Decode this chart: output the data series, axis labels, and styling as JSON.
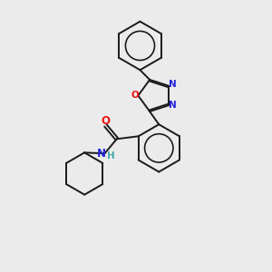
{
  "background_color": "#ebebeb",
  "bond_color": "#1a1a1a",
  "atom_colors": {
    "O": "#ee1111",
    "N": "#2222dd",
    "C": "#1a1a1a",
    "H": "#44aaaa"
  },
  "figsize": [
    3.0,
    3.0
  ],
  "dpi": 100,
  "xlim": [
    0,
    10
  ],
  "ylim": [
    0,
    10
  ]
}
